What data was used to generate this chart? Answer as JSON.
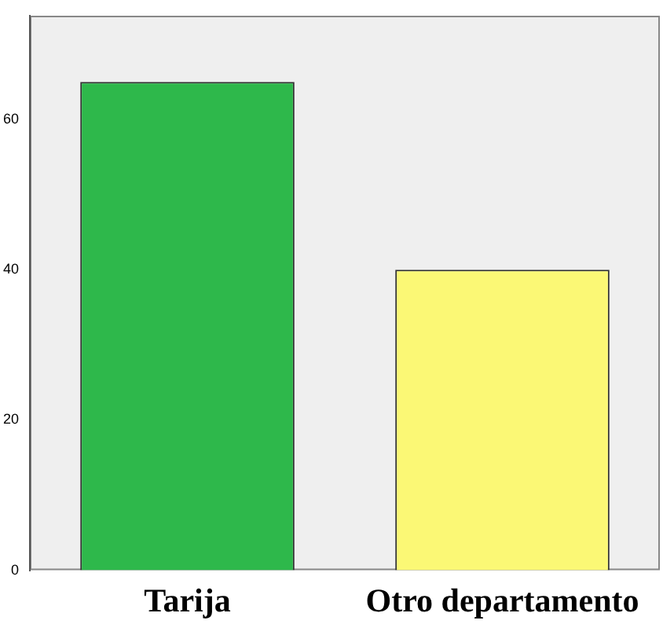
{
  "chart_data": {
    "type": "bar",
    "categories": [
      "Tarija",
      "Otro departamento"
    ],
    "values": [
      65,
      40
    ],
    "colors": [
      "#2eb84b",
      "#fbf875"
    ],
    "ylim": [
      0,
      73.8
    ],
    "yticks": [
      0,
      20,
      40,
      60
    ],
    "grid": false,
    "legend": false
  }
}
